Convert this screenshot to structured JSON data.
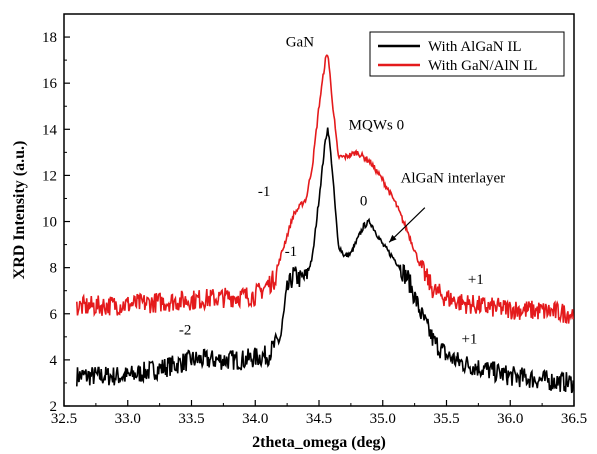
{
  "chart_data": {
    "type": "line",
    "xlabel": "2theta_omega (deg)",
    "ylabel": "XRD Intensity (a.u.)",
    "xlim": [
      32.5,
      36.5
    ],
    "ylim": [
      2,
      19
    ],
    "xticks": [
      "32.5",
      "33.0",
      "33.5",
      "34.0",
      "34.5",
      "35.0",
      "35.5",
      "36.0",
      "36.5"
    ],
    "yticks": [
      "2",
      "4",
      "6",
      "8",
      "10",
      "12",
      "14",
      "16",
      "18"
    ],
    "grid": false,
    "legend_position": "top-right",
    "series": [
      {
        "name": "With AlGaN IL",
        "color": "#000000",
        "x": [
          32.6,
          33.0,
          33.38,
          33.5,
          33.7,
          33.9,
          34.1,
          34.2,
          34.25,
          34.3,
          34.35,
          34.4,
          34.45,
          34.5,
          34.55,
          34.57,
          34.6,
          34.65,
          34.7,
          34.75,
          34.8,
          34.85,
          34.9,
          35.0,
          35.1,
          35.2,
          35.3,
          35.4,
          35.5,
          35.6,
          35.8,
          36.0,
          36.3,
          36.5
        ],
        "y": [
          3.3,
          3.3,
          3.8,
          4.0,
          4.0,
          4.0,
          4.2,
          5.0,
          7.0,
          7.7,
          7.5,
          7.6,
          8.5,
          11.0,
          13.5,
          14.1,
          12.5,
          9.0,
          8.5,
          8.6,
          9.2,
          9.8,
          10.0,
          9.0,
          8.3,
          7.5,
          6.0,
          4.8,
          4.2,
          3.9,
          3.6,
          3.3,
          3.1,
          3.0
        ]
      },
      {
        "name": "With GaN/AlN IL",
        "color": "#e41a1c",
        "x": [
          32.6,
          33.0,
          33.5,
          34.0,
          34.15,
          34.2,
          34.3,
          34.4,
          34.45,
          34.5,
          34.55,
          34.57,
          34.6,
          34.65,
          34.7,
          34.8,
          34.9,
          35.0,
          35.1,
          35.2,
          35.3,
          35.4,
          35.5,
          35.6,
          35.8,
          36.0,
          36.3,
          36.5
        ],
        "y": [
          6.3,
          6.4,
          6.6,
          6.8,
          7.5,
          8.5,
          10.3,
          11.0,
          12.5,
          15.0,
          17.0,
          17.3,
          15.5,
          12.8,
          12.8,
          13.0,
          12.6,
          11.8,
          10.8,
          9.5,
          8.0,
          7.0,
          6.7,
          6.5,
          6.3,
          6.2,
          6.1,
          6.0
        ]
      }
    ],
    "annotations": [
      {
        "text": "GaN",
        "x": 34.35,
        "y": 17.6
      },
      {
        "text": "MQWs 0",
        "x": 34.95,
        "y": 14.0
      },
      {
        "text": "AlGaN interlayer",
        "x": 35.55,
        "y": 11.7
      },
      {
        "text": "-1",
        "x": 34.07,
        "y": 11.1
      },
      {
        "text": "-1",
        "x": 34.28,
        "y": 8.5
      },
      {
        "text": "0",
        "x": 34.85,
        "y": 10.7
      },
      {
        "text": "-2",
        "x": 33.45,
        "y": 5.1
      },
      {
        "text": "+1",
        "x": 35.73,
        "y": 7.3
      },
      {
        "text": "+1",
        "x": 35.68,
        "y": 4.7
      }
    ],
    "arrow": {
      "from": [
        35.33,
        10.6
      ],
      "to": [
        35.05,
        9.1
      ]
    }
  }
}
